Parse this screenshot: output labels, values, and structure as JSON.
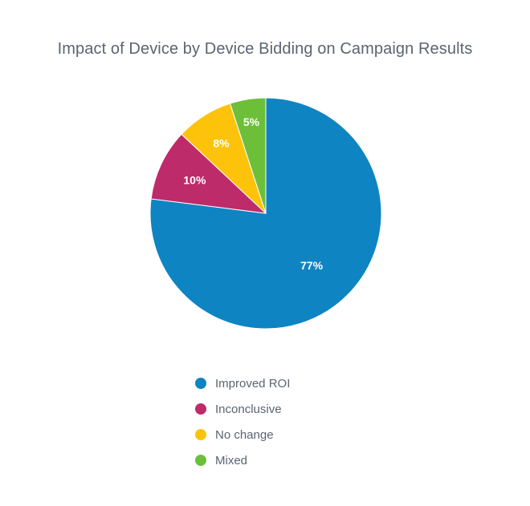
{
  "chart_data": {
    "type": "pie",
    "title": "Impact of Device by Device Bidding on Campaign Results",
    "slices": [
      {
        "label": "Improved ROI",
        "value": 77,
        "display": "77%",
        "color": "#0f84c2"
      },
      {
        "label": "Inconclusive",
        "value": 10,
        "display": "10%",
        "color": "#bd2b6a"
      },
      {
        "label": "No change",
        "value": 8,
        "display": "8%",
        "color": "#fcc30a"
      },
      {
        "label": "Mixed",
        "value": 5,
        "display": "5%",
        "color": "#6dbf3a"
      }
    ],
    "legend_position": "bottom"
  }
}
